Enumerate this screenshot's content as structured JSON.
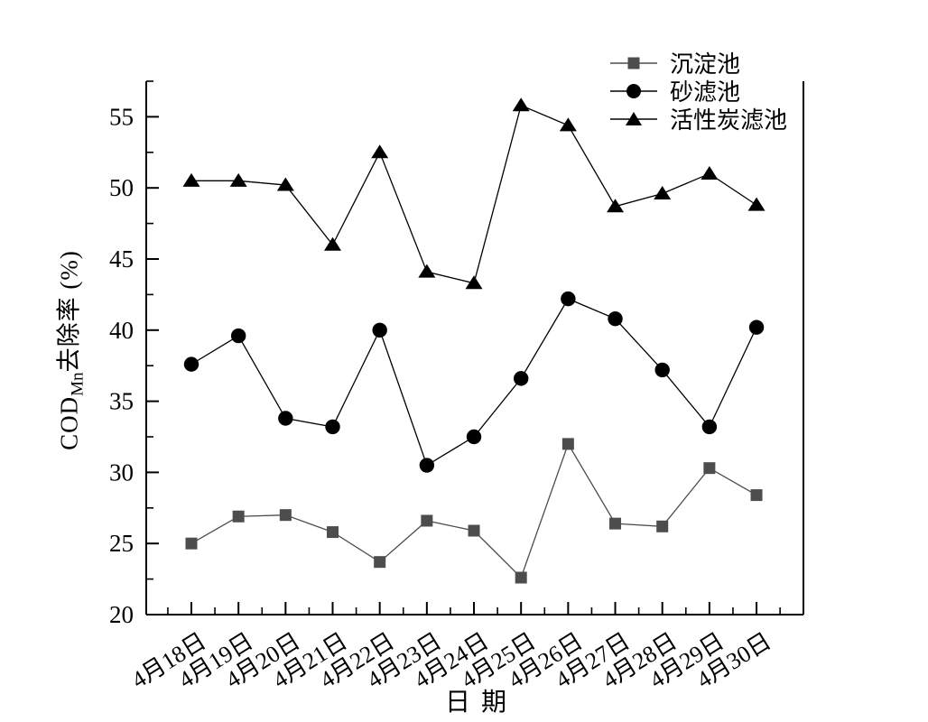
{
  "chart_data": {
    "type": "line",
    "title": "",
    "xlabel": "日期",
    "ylabel": "COD_Mn去除率 (%)",
    "ylabel_parts": {
      "main": "COD",
      "sub": "Mn",
      "rest": "去除率 (%)"
    },
    "categories": [
      "4月18日",
      "4月19日",
      "4月20日",
      "4月21日",
      "4月22日",
      "4月23日",
      "4月24日",
      "4月25日",
      "4月26日",
      "4月27日",
      "4月28日",
      "4月29日",
      "4月30日"
    ],
    "series": [
      {
        "name": "沉淀池",
        "marker": "square",
        "color": "#4d4d4d",
        "values": [
          25.0,
          26.9,
          27.0,
          25.8,
          23.7,
          26.6,
          25.9,
          22.6,
          32.0,
          26.4,
          26.2,
          30.3,
          28.4
        ]
      },
      {
        "name": "砂滤池",
        "marker": "circle",
        "color": "#000000",
        "values": [
          37.6,
          39.6,
          33.8,
          33.2,
          40.0,
          30.5,
          32.5,
          36.6,
          42.2,
          40.8,
          37.2,
          33.2,
          40.2
        ]
      },
      {
        "name": "活性炭滤池",
        "marker": "triangle",
        "color": "#000000",
        "values": [
          50.5,
          50.5,
          50.2,
          46.0,
          52.5,
          44.1,
          43.3,
          55.8,
          54.4,
          48.7,
          49.6,
          51.0,
          48.8
        ]
      }
    ],
    "ylim": [
      20,
      57.5
    ],
    "yticks": [
      20,
      25,
      30,
      35,
      40,
      45,
      50,
      55
    ],
    "y_minor_step": 2.5,
    "grid": false,
    "legend_position": "top-right",
    "axis_color": "#000000"
  }
}
